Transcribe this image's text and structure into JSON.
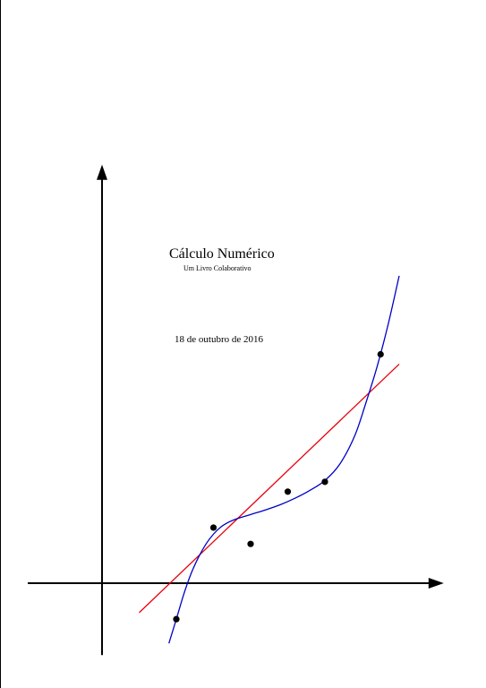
{
  "cover": {
    "title": "Cálculo Numérico",
    "subtitle": "Um Livro Colaborativo",
    "date": "18 de outubro de 2016"
  },
  "colors": {
    "axes": "#000000",
    "regression_line": "#e8000b",
    "interpolation_curve": "#0000c8",
    "points": "#000000"
  },
  "chart_data": {
    "type": "scatter",
    "title": "",
    "xlabel": "",
    "ylabel": "",
    "grid": false,
    "legend": "none",
    "xlim": [
      -1,
      4.6
    ],
    "ylim": [
      -1.1,
      6.4
    ],
    "points": [
      {
        "x": 1.0,
        "y": -0.55
      },
      {
        "x": 1.5,
        "y": 0.85
      },
      {
        "x": 2.0,
        "y": 0.6
      },
      {
        "x": 2.5,
        "y": 1.4
      },
      {
        "x": 3.0,
        "y": 1.55
      },
      {
        "x": 3.75,
        "y": 3.5
      }
    ],
    "regression_line": {
      "x0": 0.5,
      "y0": -0.45,
      "x1": 4.0,
      "y1": 3.35
    },
    "interpolation_curve": [
      {
        "x": 0.9,
        "y": -0.92
      },
      {
        "x": 1.0,
        "y": -0.55
      },
      {
        "x": 1.1,
        "y": -0.17
      },
      {
        "x": 1.2,
        "y": 0.15
      },
      {
        "x": 1.3,
        "y": 0.4
      },
      {
        "x": 1.4,
        "y": 0.6
      },
      {
        "x": 1.5,
        "y": 0.75
      },
      {
        "x": 1.6,
        "y": 0.86
      },
      {
        "x": 1.7,
        "y": 0.93
      },
      {
        "x": 1.8,
        "y": 0.98
      },
      {
        "x": 2.0,
        "y": 1.05
      },
      {
        "x": 2.2,
        "y": 1.12
      },
      {
        "x": 2.4,
        "y": 1.2
      },
      {
        "x": 2.6,
        "y": 1.3
      },
      {
        "x": 2.8,
        "y": 1.42
      },
      {
        "x": 3.0,
        "y": 1.57
      },
      {
        "x": 3.2,
        "y": 1.82
      },
      {
        "x": 3.4,
        "y": 2.25
      },
      {
        "x": 3.55,
        "y": 2.75
      },
      {
        "x": 3.7,
        "y": 3.3
      },
      {
        "x": 3.85,
        "y": 3.95
      },
      {
        "x": 4.0,
        "y": 4.7
      }
    ]
  }
}
